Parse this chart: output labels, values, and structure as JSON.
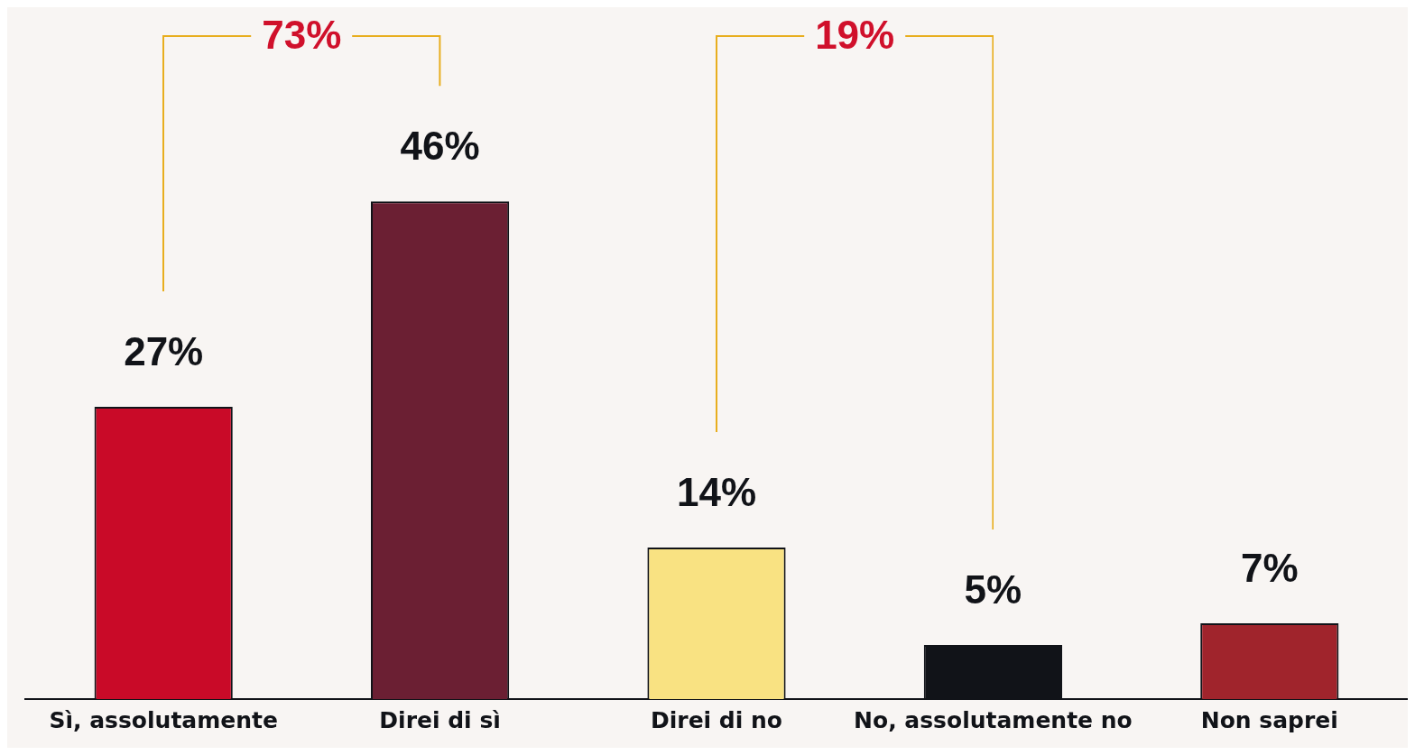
{
  "chart_data": {
    "type": "bar",
    "categories": [
      "Sì, assolutamente",
      "Direi di sì",
      "Direi di no",
      "No, assolutamente no",
      "Non saprei"
    ],
    "values": [
      27,
      46,
      14,
      5,
      7
    ],
    "colors": [
      "#c90a28",
      "#6b1f33",
      "#f9e282",
      "#111318",
      "#a0242c"
    ],
    "value_labels": [
      "27%",
      "46%",
      "14%",
      "5%",
      "7%"
    ],
    "annotations": [
      "73%",
      "19%"
    ],
    "grid": false,
    "legend": false
  }
}
